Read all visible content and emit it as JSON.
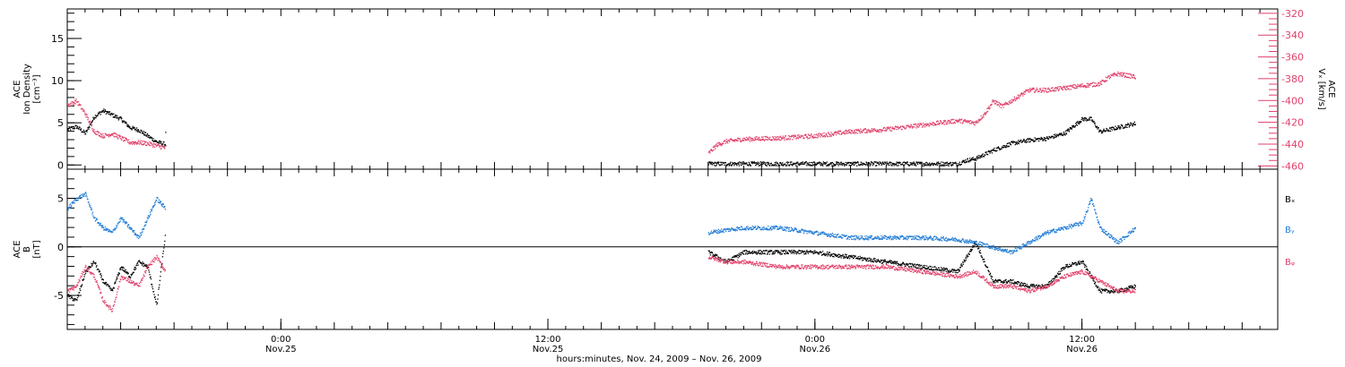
{
  "colors": {
    "black": "#000000",
    "pink": "#e0406a",
    "blue": "#1e7bd6"
  },
  "xaxis": {
    "caption": "hours:minutes, Nov. 24, 2009 – Nov. 26, 2009",
    "range_hours": [
      0,
      68
    ],
    "major_ticks": [
      {
        "hour": 12,
        "time": "0:00",
        "date": "Nov.25"
      },
      {
        "hour": 27,
        "time": "12:00",
        "date": "Nov.25"
      },
      {
        "hour": 42,
        "time": "0:00",
        "date": "Nov.26"
      },
      {
        "hour": 57,
        "time": "12:00",
        "date": "Nov.26"
      }
    ]
  },
  "chart_data": [
    {
      "type": "scatter",
      "ylabel_lines": [
        "ACE",
        "Ion Density",
        "[cm⁻³]"
      ],
      "ylim": [
        -0.5,
        18.5
      ],
      "yticks": [
        "0",
        "5",
        "10",
        "15"
      ],
      "y2label_lines": [
        "ACE",
        "Vₓ [km/s]"
      ],
      "y2lim": [
        -463,
        -316
      ],
      "y2ticks": [
        "-320",
        "-340",
        "-360",
        "-380",
        "-400",
        "-420",
        "-440",
        "-460"
      ],
      "series": [
        {
          "color": "black",
          "axis": "left",
          "segments": [
            [
              [
                0,
                4.3
              ],
              [
                0.5,
                4.6
              ],
              [
                1,
                3.8
              ],
              [
                1.5,
                5.8
              ],
              [
                2,
                6.5
              ],
              [
                2.5,
                6.0
              ],
              [
                3,
                5.5
              ],
              [
                3.5,
                4.5
              ],
              [
                4,
                4.2
              ],
              [
                4.5,
                3.5
              ],
              [
                5,
                2.8
              ],
              [
                5.5,
                2.5
              ],
              [
                5.5,
                5.0
              ]
            ],
            [
              [
                36,
                0.2
              ],
              [
                40,
                0.2
              ],
              [
                44,
                0.2
              ],
              [
                48,
                0.2
              ],
              [
                50,
                0.2
              ],
              [
                50.5,
                0.6
              ],
              [
                51,
                0.8
              ],
              [
                52,
                1.8
              ],
              [
                53,
                2.6
              ],
              [
                54,
                3.0
              ],
              [
                55,
                3.2
              ],
              [
                56,
                3.8
              ],
              [
                57,
                5.5
              ],
              [
                57.5,
                5.5
              ],
              [
                58,
                4.0
              ],
              [
                59,
                4.5
              ],
              [
                60,
                5.0
              ]
            ]
          ]
        },
        {
          "color": "pink",
          "axis": "right",
          "segments": [
            [
              [
                0,
                -404
              ],
              [
                0.5,
                -400
              ],
              [
                1,
                -412
              ],
              [
                1.5,
                -428
              ],
              [
                2,
                -432
              ],
              [
                2.5,
                -430
              ],
              [
                3,
                -434
              ],
              [
                3.5,
                -438
              ],
              [
                4,
                -438
              ],
              [
                4.5,
                -439
              ],
              [
                5,
                -441
              ],
              [
                5.5,
                -443
              ]
            ],
            [
              [
                36,
                -448
              ],
              [
                36.5,
                -440
              ],
              [
                37,
                -437
              ],
              [
                38,
                -435
              ],
              [
                40,
                -434
              ],
              [
                42,
                -432
              ],
              [
                44,
                -428
              ],
              [
                46,
                -426
              ],
              [
                48,
                -422
              ],
              [
                50,
                -418
              ],
              [
                51,
                -420
              ],
              [
                51.5,
                -412
              ],
              [
                52,
                -400
              ],
              [
                52.5,
                -405
              ],
              [
                53,
                -400
              ],
              [
                54,
                -390
              ],
              [
                55,
                -390
              ],
              [
                56,
                -388
              ],
              [
                57,
                -386
              ],
              [
                58,
                -384
              ],
              [
                58.5,
                -378
              ],
              [
                59,
                -375
              ],
              [
                60,
                -378
              ]
            ]
          ]
        }
      ]
    },
    {
      "type": "scatter",
      "ylabel_lines": [
        "ACE",
        "B",
        "[nT]"
      ],
      "ylim": [
        -8.5,
        8
      ],
      "yticks": [
        "5",
        "0",
        "-5"
      ],
      "legend": [
        {
          "label": "Bₓ",
          "color": "black"
        },
        {
          "label": "Bᵧ",
          "color": "blue"
        },
        {
          "label": "Bᵩ",
          "color": "pink"
        }
      ],
      "series": [
        {
          "color": "black",
          "segments": [
            [
              [
                0,
                -5.0
              ],
              [
                0.5,
                -5.5
              ],
              [
                1,
                -2.5
              ],
              [
                1.5,
                -1.5
              ],
              [
                2,
                -3.5
              ],
              [
                2.5,
                -4.5
              ],
              [
                3,
                -2.0
              ],
              [
                3.5,
                -3.0
              ],
              [
                4,
                -1.5
              ],
              [
                4.5,
                -2.0
              ],
              [
                5,
                -6.0
              ],
              [
                5.5,
                1.5
              ]
            ],
            [
              [
                36,
                -0.5
              ],
              [
                37,
                -1.5
              ],
              [
                38,
                -0.5
              ],
              [
                40,
                -0.5
              ],
              [
                42,
                -0.5
              ],
              [
                44,
                -1.0
              ],
              [
                46,
                -1.5
              ],
              [
                48,
                -2.0
              ],
              [
                50,
                -2.5
              ],
              [
                51,
                0.5
              ],
              [
                52,
                -3.5
              ],
              [
                53,
                -3.5
              ],
              [
                54,
                -4.0
              ],
              [
                55,
                -4.0
              ],
              [
                56,
                -2.0
              ],
              [
                57,
                -1.5
              ],
              [
                58,
                -4.5
              ],
              [
                59,
                -4.5
              ],
              [
                60,
                -4.0
              ]
            ]
          ]
        },
        {
          "color": "blue",
          "segments": [
            [
              [
                0,
                4.0
              ],
              [
                0.5,
                5.0
              ],
              [
                1,
                5.5
              ],
              [
                1.5,
                3.0
              ],
              [
                2,
                2.0
              ],
              [
                2.5,
                1.5
              ],
              [
                3,
                3.0
              ],
              [
                3.5,
                2.0
              ],
              [
                4,
                1.0
              ],
              [
                4.5,
                3.0
              ],
              [
                5,
                5.0
              ],
              [
                5.5,
                4.0
              ]
            ],
            [
              [
                36,
                1.5
              ],
              [
                37,
                1.8
              ],
              [
                38,
                2.0
              ],
              [
                40,
                2.0
              ],
              [
                42,
                1.5
              ],
              [
                44,
                1.0
              ],
              [
                46,
                1.0
              ],
              [
                48,
                1.0
              ],
              [
                50,
                0.8
              ],
              [
                51,
                0.5
              ],
              [
                52,
                0
              ],
              [
                53,
                -0.5
              ],
              [
                54,
                0.5
              ],
              [
                55,
                1.5
              ],
              [
                56,
                2.0
              ],
              [
                57,
                2.5
              ],
              [
                57.5,
                5.0
              ],
              [
                58,
                2.0
              ],
              [
                59,
                0.5
              ],
              [
                60,
                2.0
              ]
            ]
          ]
        },
        {
          "color": "pink",
          "segments": [
            [
              [
                0,
                -4.5
              ],
              [
                0.5,
                -4.0
              ],
              [
                1,
                -2.0
              ],
              [
                1.5,
                -3.0
              ],
              [
                2,
                -5.5
              ],
              [
                2.5,
                -6.5
              ],
              [
                3,
                -3.0
              ],
              [
                3.5,
                -3.5
              ],
              [
                4,
                -4.0
              ],
              [
                4.5,
                -2.0
              ],
              [
                5,
                -1.0
              ],
              [
                5.5,
                -2.5
              ]
            ],
            [
              [
                36,
                -1.0
              ],
              [
                37,
                -1.5
              ],
              [
                38,
                -1.5
              ],
              [
                40,
                -2.0
              ],
              [
                42,
                -2.0
              ],
              [
                44,
                -2.0
              ],
              [
                46,
                -2.0
              ],
              [
                48,
                -2.5
              ],
              [
                50,
                -3.0
              ],
              [
                51,
                -2.5
              ],
              [
                52,
                -4.0
              ],
              [
                53,
                -4.0
              ],
              [
                54,
                -4.5
              ],
              [
                55,
                -4.0
              ],
              [
                56,
                -3.0
              ],
              [
                57,
                -2.5
              ],
              [
                58,
                -3.5
              ],
              [
                59,
                -4.5
              ],
              [
                60,
                -4.5
              ]
            ]
          ]
        }
      ]
    }
  ]
}
